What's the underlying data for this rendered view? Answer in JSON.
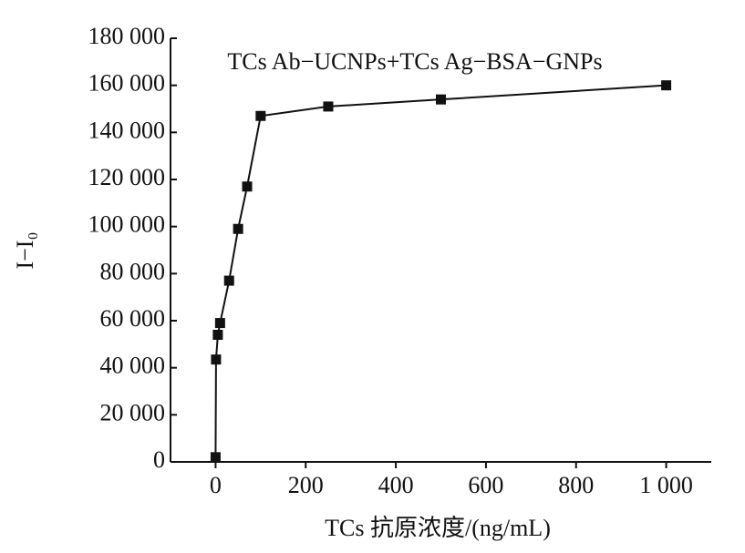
{
  "chart_data": {
    "type": "line",
    "annotation": "TCs Ab−UCNPs+TCs Ag−BSA−GNPs",
    "xlabel": "TCs 抗原浓度/(ng/mL)",
    "ylabel": "I−I₀",
    "x": [
      0,
      1,
      5,
      10,
      30,
      50,
      70,
      100,
      250,
      500,
      1000
    ],
    "series": [
      {
        "color": "#111111",
        "values": [
          2000,
          43500,
          54000,
          59000,
          77000,
          99000,
          117000,
          147000,
          151000,
          154000,
          160000
        ]
      }
    ],
    "xlim": [
      -100,
      1100
    ],
    "xticks": [
      0,
      200,
      400,
      600,
      800,
      {
        "value": 1000,
        "label": "1 000"
      }
    ],
    "ylim": [
      0,
      180000
    ],
    "yticks": [
      0,
      {
        "value": 20000,
        "label": "20 000"
      },
      {
        "value": 40000,
        "label": "40 000"
      },
      {
        "value": 60000,
        "label": "60 000"
      },
      {
        "value": 80000,
        "label": "80 000"
      },
      {
        "value": 100000,
        "label": "100 000"
      },
      {
        "value": 120000,
        "label": "120 000"
      },
      {
        "value": 140000,
        "label": "140 000"
      },
      {
        "value": 160000,
        "label": "160 000"
      },
      {
        "value": 180000,
        "label": "180 000"
      }
    ]
  }
}
